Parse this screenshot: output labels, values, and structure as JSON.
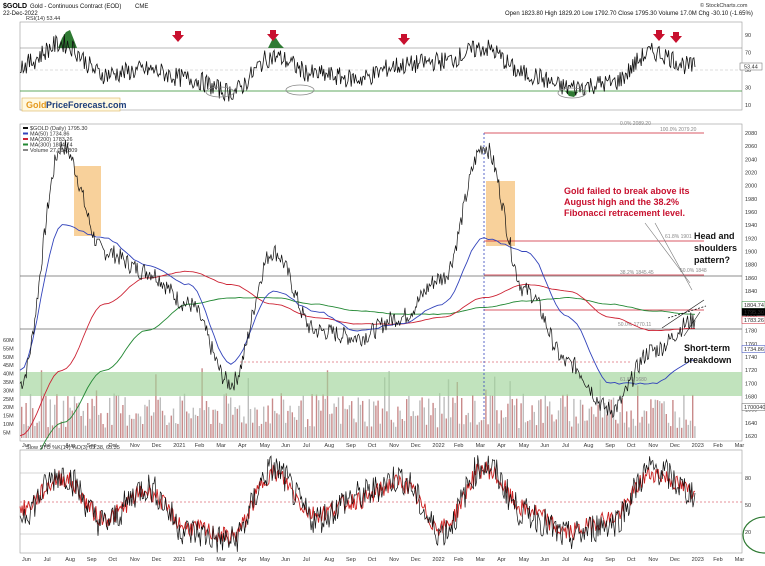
{
  "header": {
    "symbol": "$GOLD",
    "name": "Gold - Continuous Contract (EOD)",
    "exchange": "CME",
    "date": "22-Dec-2022",
    "ohlc": "Open 1823.80  High 1829.20  Low 1792.70  Close 1795.30  Volume 17.0M  Chg -30.10 (-1.65%)",
    "credit": "© StockCharts.com"
  },
  "rsi_panel": {
    "label": "RSI(14) 53.44",
    "value_tag": "53.44",
    "ticks": [
      "90",
      "70",
      "50",
      "30",
      "10"
    ],
    "brand_left": "Gold",
    "brand_right": "PriceForecast.com"
  },
  "price_panel": {
    "legend": [
      "$GOLD (Daily) 1795.30",
      "MA(50) 1734.86",
      "MA(200) 1783.26",
      "MA(300) 1804.74",
      "Volume 27,094,809"
    ],
    "ticks": [
      "2080",
      "2060",
      "2040",
      "2020",
      "2000",
      "1980",
      "1960",
      "1940",
      "1920",
      "1900",
      "1880",
      "1860",
      "1840",
      "1820",
      "1800",
      "1780",
      "1760",
      "1740",
      "1720",
      "1700",
      "1680",
      "1660",
      "1640",
      "1620"
    ],
    "vol_ticks": [
      "60M",
      "55M",
      "50M",
      "45M",
      "40M",
      "35M",
      "30M",
      "25M",
      "20M",
      "15M",
      "10M",
      "5M"
    ],
    "price_tags": [
      "1804.74",
      "1795.30",
      "1783.26",
      "1734.86",
      "1700040"
    ],
    "fib_labels": [
      "0.0% 2089.20",
      "100.0% 2079.20",
      "61.8% 1901",
      "38.2% 1845.45",
      "50.0% 1848",
      "50.0% 1770.11",
      "61.8% 1680"
    ]
  },
  "annotations": {
    "fib_failure": [
      "Gold failed to break above its",
      "August high and the 38.2%",
      "Fibonacci retracement level."
    ],
    "hs": [
      "Head and",
      "shoulders",
      "pattern?"
    ],
    "breakdown": [
      "Short-term",
      "breakdown"
    ]
  },
  "stoch_panel": {
    "label": "Slow STO %K(14) %D(3) 63.38, 65.35",
    "ticks": [
      "80",
      "50",
      "20"
    ]
  },
  "x_axis": [
    "Jun",
    "Jul",
    "Aug",
    "Sep",
    "Oct",
    "Nov",
    "Dec",
    "2021",
    "Feb",
    "Mar",
    "Apr",
    "May",
    "Jun",
    "Jul",
    "Aug",
    "Sep",
    "Oct",
    "Nov",
    "Dec",
    "2022",
    "Feb",
    "Mar",
    "Apr",
    "May",
    "Jun",
    "Jul",
    "Aug",
    "Sep",
    "Oct",
    "Nov",
    "Dec",
    "2023",
    "Feb",
    "Mar"
  ],
  "colors": {
    "price": "#111111",
    "ma50": "#3344bb",
    "ma200": "#cc2233",
    "ma300": "#228833",
    "vol": "#bdbdbd",
    "green_zone": "#9fd49a",
    "orange_zone": "#f6c27a",
    "annotation_red": "#c8102e",
    "stoch_k": "#111111",
    "stoch_d": "#cc2222",
    "rsi_fill": "#2f7a33",
    "arrow": "#c8102e"
  },
  "chart_data": [
    {
      "type": "line",
      "title": "$GOLD (Daily)",
      "series": [
        {
          "name": "$GOLD (Daily)",
          "x": [
            "2020-06",
            "2020-08",
            "2020-10",
            "2020-12",
            "2021-02",
            "2021-04",
            "2021-06",
            "2021-08",
            "2021-10",
            "2021-12",
            "2022-02",
            "2022-03",
            "2022-05",
            "2022-07",
            "2022-09",
            "2022-11",
            "2022-12-22"
          ],
          "values": [
            1700,
            2060,
            1900,
            1870,
            1820,
            1700,
            1900,
            1780,
            1770,
            1800,
            1860,
            2060,
            1840,
            1730,
            1660,
            1750,
            1795.3
          ]
        },
        {
          "name": "MA(50)",
          "values": [
            1720,
            1940,
            1920,
            1880,
            1850,
            1730,
            1840,
            1810,
            1780,
            1790,
            1820,
            1920,
            1900,
            1800,
            1700,
            1700,
            1734.86
          ]
        },
        {
          "name": "MA(200)",
          "values": [
            1620,
            1720,
            1820,
            1860,
            1870,
            1850,
            1820,
            1800,
            1790,
            1790,
            1800,
            1830,
            1850,
            1840,
            1800,
            1780,
            1783.26
          ]
        },
        {
          "name": "MA(300)",
          "values": [
            1560,
            1640,
            1720,
            1780,
            1820,
            1830,
            1830,
            1820,
            1810,
            1805,
            1805,
            1815,
            1825,
            1830,
            1820,
            1810,
            1804.74
          ]
        }
      ],
      "ylim": [
        1620,
        2080
      ]
    },
    {
      "type": "line",
      "title": "RSI(14)",
      "series": [
        {
          "name": "RSI(14)",
          "values": [
            55,
            80,
            45,
            50,
            40,
            25,
            65,
            45,
            40,
            55,
            60,
            75,
            45,
            30,
            35,
            70,
            53.44
          ]
        }
      ],
      "ylim": [
        10,
        90
      ]
    },
    {
      "type": "line",
      "title": "Slow STO %K(14) %D(3)",
      "series": [
        {
          "name": "%K",
          "values": [
            40,
            85,
            30,
            70,
            20,
            10,
            90,
            35,
            60,
            80,
            20,
            95,
            40,
            15,
            30,
            90,
            63.38
          ]
        },
        {
          "name": "%D",
          "values": [
            45,
            80,
            35,
            65,
            25,
            15,
            85,
            40,
            55,
            75,
            25,
            90,
            45,
            20,
            35,
            85,
            65.35
          ]
        }
      ],
      "ylim": [
        0,
        100
      ]
    }
  ]
}
